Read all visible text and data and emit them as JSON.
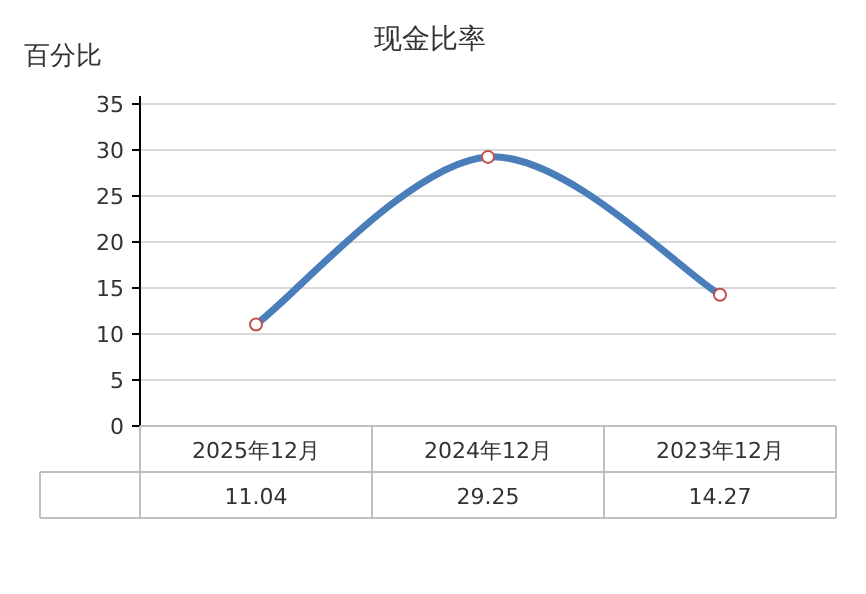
{
  "chart_data": {
    "type": "line",
    "title": "现金比率",
    "ylabel": "百分比",
    "categories": [
      "2025年12月",
      "2024年12月",
      "2023年12月"
    ],
    "series": [
      {
        "color": "#4a7ebb",
        "values": [
          11.04,
          29.25,
          14.27
        ]
      }
    ],
    "ylim": [
      0,
      35
    ],
    "yticks": [
      0,
      5,
      10,
      15,
      20,
      25,
      30,
      35
    ],
    "grid": "y",
    "marker": "circle",
    "line_style": "solid",
    "data_labels": true
  }
}
